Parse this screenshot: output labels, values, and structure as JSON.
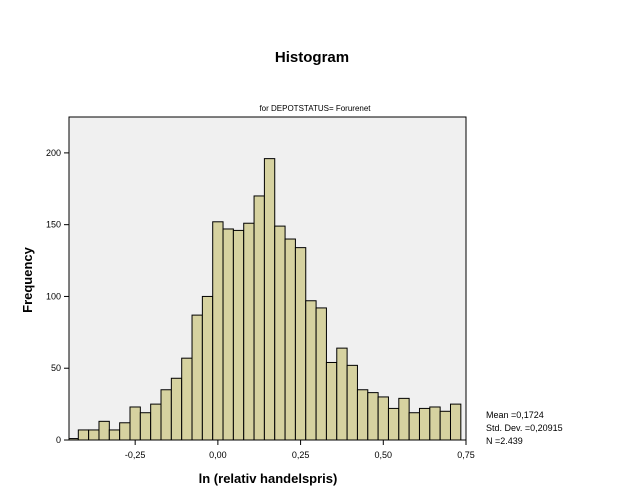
{
  "chart_data": {
    "type": "bar",
    "title": "Histogram",
    "subtitle": "for DEPOTSTATUS= Forurenet",
    "xlabel": "ln (relativ handelspris)",
    "ylabel": "Frequency",
    "xlim": [
      -0.45,
      0.75
    ],
    "ylim": [
      0,
      225
    ],
    "xticks": [
      -0.25,
      0.0,
      0.25,
      0.5,
      0.75
    ],
    "xtick_labels": [
      "-0,25",
      "0,00",
      "0,25",
      "0,50",
      "0,75"
    ],
    "yticks": [
      0,
      50,
      100,
      150,
      200
    ],
    "ytick_labels": [
      "0",
      "50",
      "100",
      "150",
      "200"
    ],
    "bin_width": 0.03125,
    "bin_start": -0.453125,
    "values": [
      1,
      7,
      7,
      13,
      7,
      12,
      23,
      19,
      25,
      35,
      43,
      57,
      87,
      100,
      152,
      147,
      146,
      151,
      170,
      196,
      149,
      140,
      134,
      97,
      92,
      54,
      64,
      52,
      35,
      33,
      30,
      22,
      29,
      19,
      22,
      23,
      20,
      25
    ],
    "grid": false,
    "bar_color": "#d6d2a0",
    "bar_edge_color": "#000000",
    "plot_background": "#f0f0f0",
    "stats": {
      "mean": "Mean =0,1724",
      "std": "Std. Dev. =0,20915",
      "n": "N =2.439"
    }
  }
}
